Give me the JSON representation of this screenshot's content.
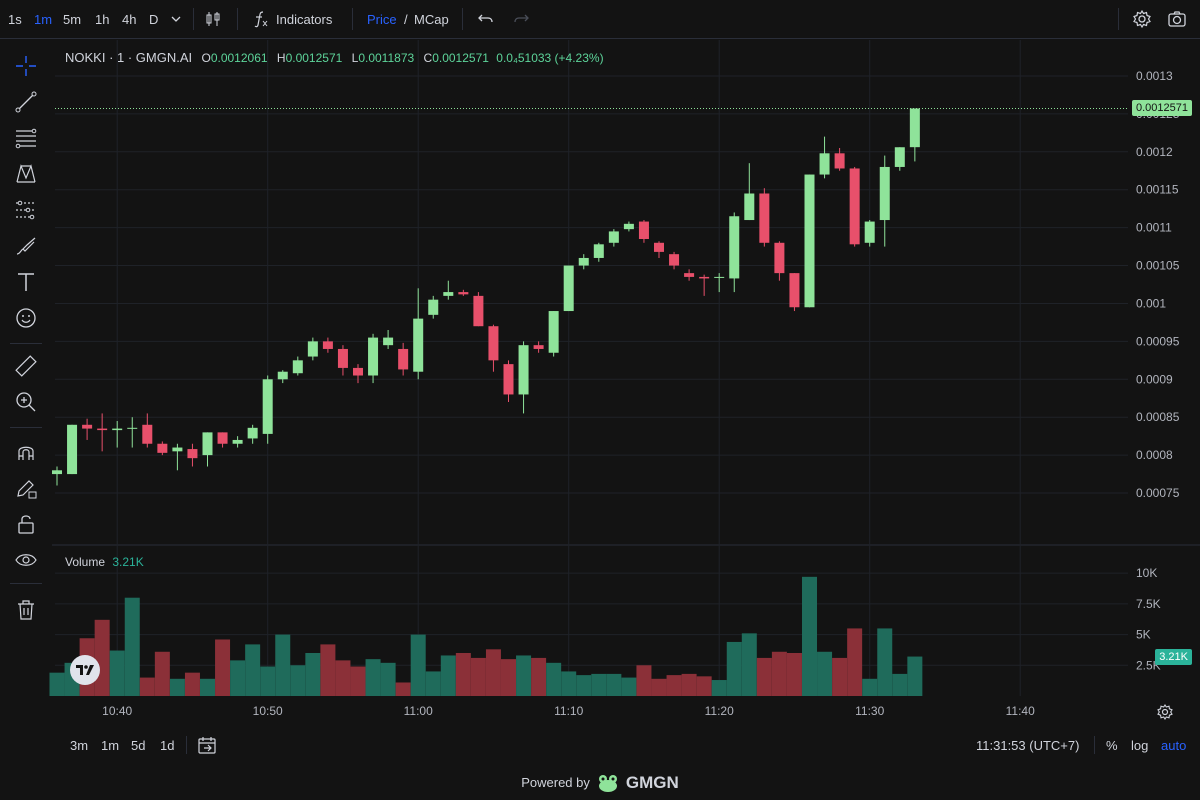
{
  "toolbar": {
    "intervals": [
      "1s",
      "1m",
      "5m",
      "1h",
      "4h",
      "D"
    ],
    "active_interval": "1m",
    "indicators_label": "Indicators",
    "price_label": "Price",
    "mcap_sep": "/",
    "mcap_label": "MCap",
    "icons": [
      "chevron-down-icon",
      "candles-icon",
      "function-icon",
      "undo-icon",
      "redo-icon",
      "gear-icon",
      "camera-icon"
    ]
  },
  "legend": {
    "symbol": "NOKKI · 1 · GMGN.AI",
    "o_key": "O",
    "o_val": "0.0012061",
    "h_key": "H",
    "h_val": "0.0012571",
    "l_key": "L",
    "l_val": "0.0011873",
    "c_key": "C",
    "c_val": "0.0012571",
    "change": "0.0₄51033 (+4.23%)"
  },
  "volume_legend": {
    "label": "Volume",
    "value": "3.21K"
  },
  "last_price": "0.0012571",
  "colors": {
    "up": "#8fe39a",
    "down": "#e8506b",
    "vol_up": "#1f6b5b",
    "vol_down": "#8b3038",
    "accent": "#2962ff",
    "bg": "#131313"
  },
  "left_tools": [
    "crosshair-icon",
    "trend-line-icon",
    "fib-icon",
    "pattern-icon",
    "measure-lines-icon",
    "brush-icon",
    "text-icon",
    "emoji-icon",
    "ruler-icon",
    "zoom-in-icon",
    "magnet-icon",
    "lock-draw-icon",
    "lock-icon",
    "eye-icon",
    "trash-icon"
  ],
  "time_axis": {
    "labels": [
      "10:40",
      "10:50",
      "11:00",
      "11:10",
      "11:20",
      "11:30",
      "11:40"
    ]
  },
  "bottombar": {
    "ranges": [
      "3m",
      "1m",
      "5d",
      "1d"
    ],
    "clock": "11:31:53 (UTC+7)",
    "percent": "%",
    "log": "log",
    "auto": "auto"
  },
  "footer": {
    "powered": "Powered by",
    "brand": "GMGN"
  },
  "chart_data": {
    "type": "candlestick",
    "y_price_ticks": [
      "0.0013",
      "0.00125",
      "0.0012",
      "0.00115",
      "0.0011",
      "0.00105",
      "0.001",
      "0.00095",
      "0.0009",
      "0.00085",
      "0.0008",
      "0.00075"
    ],
    "y_volume_ticks": [
      "10K",
      "7.5K",
      "5K",
      "2.5K"
    ],
    "price_ylim": [
      0.000725,
      0.001325
    ],
    "volume_ylim": [
      0,
      10500
    ],
    "time_start": "10:36",
    "time_step_minutes": 1,
    "candles": [
      {
        "o": 0.000775,
        "h": 0.000785,
        "l": 0.00076,
        "c": 0.00078,
        "v": 1900
      },
      {
        "o": 0.000775,
        "h": 0.00084,
        "l": 0.000775,
        "c": 0.00084,
        "v": 2700
      },
      {
        "o": 0.00084,
        "h": 0.000848,
        "l": 0.00082,
        "c": 0.000835,
        "v": 4700
      },
      {
        "o": 0.000835,
        "h": 0.000855,
        "l": 0.000805,
        "c": 0.000833,
        "v": 6200
      },
      {
        "o": 0.000833,
        "h": 0.000845,
        "l": 0.00081,
        "c": 0.000835,
        "v": 3700
      },
      {
        "o": 0.000835,
        "h": 0.00085,
        "l": 0.00081,
        "c": 0.000836,
        "v": 8000
      },
      {
        "o": 0.00084,
        "h": 0.000855,
        "l": 0.00081,
        "c": 0.000815,
        "v": 1500
      },
      {
        "o": 0.000815,
        "h": 0.000818,
        "l": 0.0008,
        "c": 0.000803,
        "v": 3600
      },
      {
        "o": 0.000805,
        "h": 0.000815,
        "l": 0.00078,
        "c": 0.00081,
        "v": 1400
      },
      {
        "o": 0.000808,
        "h": 0.000815,
        "l": 0.000785,
        "c": 0.000796,
        "v": 1900
      },
      {
        "o": 0.0008,
        "h": 0.00083,
        "l": 0.000785,
        "c": 0.00083,
        "v": 1400
      },
      {
        "o": 0.00083,
        "h": 0.00083,
        "l": 0.00081,
        "c": 0.000815,
        "v": 4600
      },
      {
        "o": 0.000815,
        "h": 0.000825,
        "l": 0.00081,
        "c": 0.00082,
        "v": 2900
      },
      {
        "o": 0.000822,
        "h": 0.00084,
        "l": 0.000815,
        "c": 0.000836,
        "v": 4200
      },
      {
        "o": 0.000828,
        "h": 0.000905,
        "l": 0.000815,
        "c": 0.0009,
        "v": 2400
      },
      {
        "o": 0.0009,
        "h": 0.000912,
        "l": 0.000895,
        "c": 0.00091,
        "v": 5000
      },
      {
        "o": 0.000908,
        "h": 0.00093,
        "l": 0.000905,
        "c": 0.000925,
        "v": 2500
      },
      {
        "o": 0.00093,
        "h": 0.000955,
        "l": 0.000925,
        "c": 0.00095,
        "v": 3500
      },
      {
        "o": 0.00095,
        "h": 0.000955,
        "l": 0.000935,
        "c": 0.00094,
        "v": 4200
      },
      {
        "o": 0.00094,
        "h": 0.000945,
        "l": 0.000905,
        "c": 0.000915,
        "v": 2900
      },
      {
        "o": 0.000915,
        "h": 0.00092,
        "l": 0.000895,
        "c": 0.000905,
        "v": 2400
      },
      {
        "o": 0.000905,
        "h": 0.00096,
        "l": 0.000895,
        "c": 0.000955,
        "v": 3000
      },
      {
        "o": 0.000945,
        "h": 0.000965,
        "l": 0.00094,
        "c": 0.000955,
        "v": 2700
      },
      {
        "o": 0.00094,
        "h": 0.000948,
        "l": 0.000905,
        "c": 0.000913,
        "v": 1100
      },
      {
        "o": 0.00091,
        "h": 0.00102,
        "l": 0.0009,
        "c": 0.00098,
        "v": 5000
      },
      {
        "o": 0.000985,
        "h": 0.00101,
        "l": 0.00098,
        "c": 0.001005,
        "v": 2000
      },
      {
        "o": 0.00101,
        "h": 0.00103,
        "l": 0.001005,
        "c": 0.001015,
        "v": 3300
      },
      {
        "o": 0.001015,
        "h": 0.001018,
        "l": 0.00101,
        "c": 0.001012,
        "v": 3500
      },
      {
        "o": 0.00101,
        "h": 0.001015,
        "l": 0.00097,
        "c": 0.00097,
        "v": 3100
      },
      {
        "o": 0.00097,
        "h": 0.000972,
        "l": 0.00091,
        "c": 0.000925,
        "v": 3800
      },
      {
        "o": 0.00092,
        "h": 0.000925,
        "l": 0.00087,
        "c": 0.00088,
        "v": 3000
      },
      {
        "o": 0.00088,
        "h": 0.00095,
        "l": 0.000855,
        "c": 0.000945,
        "v": 3300
      },
      {
        "o": 0.000945,
        "h": 0.00095,
        "l": 0.000935,
        "c": 0.00094,
        "v": 3100
      },
      {
        "o": 0.000935,
        "h": 0.00099,
        "l": 0.00093,
        "c": 0.00099,
        "v": 2700
      },
      {
        "o": 0.00099,
        "h": 0.00105,
        "l": 0.00099,
        "c": 0.00105,
        "v": 2000
      },
      {
        "o": 0.00105,
        "h": 0.001065,
        "l": 0.001045,
        "c": 0.00106,
        "v": 1700
      },
      {
        "o": 0.00106,
        "h": 0.00108,
        "l": 0.001055,
        "c": 0.001078,
        "v": 1800
      },
      {
        "o": 0.00108,
        "h": 0.001098,
        "l": 0.001075,
        "c": 0.001095,
        "v": 1800
      },
      {
        "o": 0.001098,
        "h": 0.001108,
        "l": 0.001095,
        "c": 0.001105,
        "v": 1500
      },
      {
        "o": 0.001108,
        "h": 0.00111,
        "l": 0.00108,
        "c": 0.001085,
        "v": 2500
      },
      {
        "o": 0.00108,
        "h": 0.001082,
        "l": 0.00106,
        "c": 0.001068,
        "v": 1400
      },
      {
        "o": 0.001065,
        "h": 0.001068,
        "l": 0.001045,
        "c": 0.00105,
        "v": 1700
      },
      {
        "o": 0.00104,
        "h": 0.001045,
        "l": 0.00103,
        "c": 0.001035,
        "v": 1800
      },
      {
        "o": 0.001035,
        "h": 0.001038,
        "l": 0.00101,
        "c": 0.001033,
        "v": 1600
      },
      {
        "o": 0.001035,
        "h": 0.00104,
        "l": 0.001015,
        "c": 0.001035,
        "v": 1300
      },
      {
        "o": 0.001033,
        "h": 0.00112,
        "l": 0.001015,
        "c": 0.001115,
        "v": 4400
      },
      {
        "o": 0.00111,
        "h": 0.001185,
        "l": 0.00111,
        "c": 0.001145,
        "v": 5100
      },
      {
        "o": 0.001145,
        "h": 0.001152,
        "l": 0.001075,
        "c": 0.00108,
        "v": 3100
      },
      {
        "o": 0.00108,
        "h": 0.001082,
        "l": 0.00103,
        "c": 0.00104,
        "v": 3600
      },
      {
        "o": 0.00104,
        "h": 0.00104,
        "l": 0.00099,
        "c": 0.000995,
        "v": 3500
      },
      {
        "o": 0.000995,
        "h": 0.00117,
        "l": 0.000995,
        "c": 0.00117,
        "v": 9700
      },
      {
        "o": 0.00117,
        "h": 0.00122,
        "l": 0.001165,
        "c": 0.001198,
        "v": 3600
      },
      {
        "o": 0.001198,
        "h": 0.001205,
        "l": 0.001175,
        "c": 0.001178,
        "v": 3100
      },
      {
        "o": 0.001178,
        "h": 0.00118,
        "l": 0.001075,
        "c": 0.001078,
        "v": 5500
      },
      {
        "o": 0.00108,
        "h": 0.00111,
        "l": 0.001075,
        "c": 0.001108,
        "v": 1400
      },
      {
        "o": 0.00111,
        "h": 0.001195,
        "l": 0.001075,
        "c": 0.00118,
        "v": 5500
      },
      {
        "o": 0.00118,
        "h": 0.001206,
        "l": 0.001175,
        "c": 0.001206,
        "v": 1800
      },
      {
        "o": 0.0012061,
        "h": 0.0012571,
        "l": 0.0011873,
        "c": 0.0012571,
        "v": 3210
      }
    ]
  }
}
